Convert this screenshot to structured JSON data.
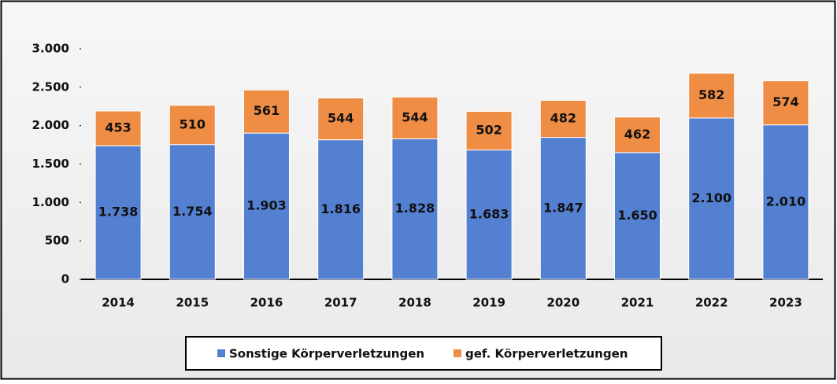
{
  "chart_data": {
    "type": "stacked_bar",
    "categories": [
      "2014",
      "2015",
      "2016",
      "2017",
      "2018",
      "2019",
      "2020",
      "2021",
      "2022",
      "2023"
    ],
    "series": [
      {
        "name": "Sonstige Körperverletzungen",
        "color": "#5480d2",
        "values": [
          1738,
          1754,
          1903,
          1816,
          1828,
          1683,
          1847,
          1650,
          2100,
          2010
        ],
        "value_labels": [
          "1.738",
          "1.754",
          "1.903",
          "1.816",
          "1.828",
          "1.683",
          "1.847",
          "1.650",
          "2.100",
          "2.010"
        ]
      },
      {
        "name": "gef. Körperverletzungen",
        "color": "#f08d45",
        "values": [
          453,
          510,
          561,
          544,
          544,
          502,
          482,
          462,
          582,
          574
        ]
      }
    ],
    "ylim": [
      0,
      3000
    ],
    "yticks": [
      0,
      500,
      {
        "value": 1000,
        "label": "1.000"
      },
      {
        "value": 1500,
        "label": "1.500"
      },
      {
        "value": 2000,
        "label": "2.000"
      },
      {
        "value": 2500,
        "label": "2.500"
      },
      {
        "value": 3000,
        "label": "3.000"
      }
    ],
    "legend": "bottom"
  }
}
